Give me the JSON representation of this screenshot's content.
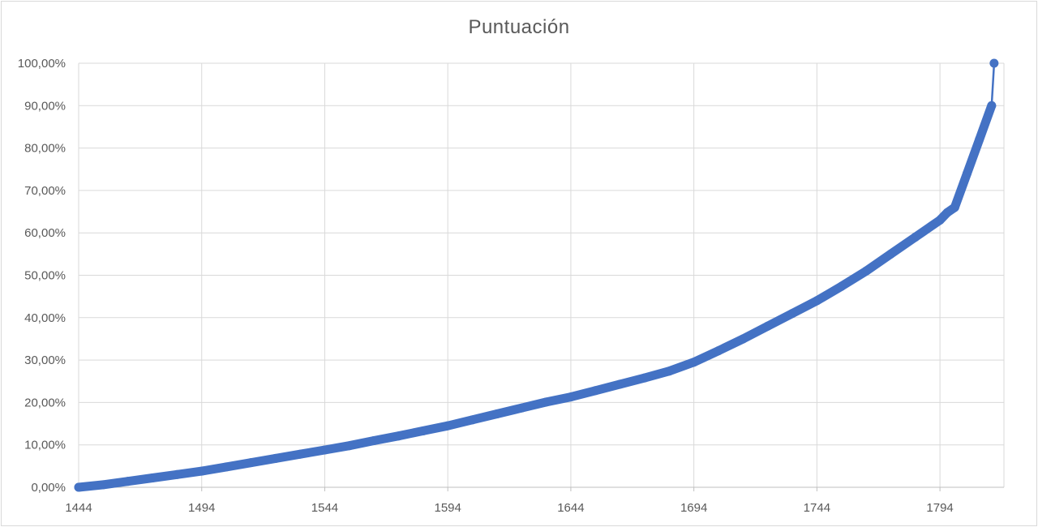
{
  "chart_data": {
    "type": "line",
    "title": "Puntuación",
    "xlabel": "",
    "ylabel": "",
    "x_range": [
      1444,
      1820
    ],
    "x_ticks": [
      "1444",
      "1494",
      "1544",
      "1594",
      "1644",
      "1694",
      "1744",
      "1794"
    ],
    "y_range": [
      0,
      1
    ],
    "y_ticks": [
      "0,00%",
      "10,00%",
      "20,00%",
      "30,00%",
      "40,00%",
      "50,00%",
      "60,00%",
      "70,00%",
      "80,00%",
      "90,00%",
      "100,00%"
    ],
    "grid": true,
    "legend": "none",
    "series": [
      {
        "color": "#4472c4",
        "points": [
          [
            1444,
            0.0
          ],
          [
            1454,
            0.006
          ],
          [
            1464,
            0.014
          ],
          [
            1474,
            0.022
          ],
          [
            1484,
            0.03
          ],
          [
            1494,
            0.038
          ],
          [
            1504,
            0.048
          ],
          [
            1514,
            0.058
          ],
          [
            1524,
            0.068
          ],
          [
            1534,
            0.078
          ],
          [
            1544,
            0.088
          ],
          [
            1554,
            0.098
          ],
          [
            1564,
            0.11
          ],
          [
            1574,
            0.121
          ],
          [
            1584,
            0.133
          ],
          [
            1594,
            0.145
          ],
          [
            1604,
            0.159
          ],
          [
            1614,
            0.173
          ],
          [
            1624,
            0.187
          ],
          [
            1634,
            0.201
          ],
          [
            1644,
            0.213
          ],
          [
            1654,
            0.228
          ],
          [
            1664,
            0.243
          ],
          [
            1674,
            0.258
          ],
          [
            1684,
            0.274
          ],
          [
            1694,
            0.295
          ],
          [
            1704,
            0.322
          ],
          [
            1714,
            0.35
          ],
          [
            1724,
            0.38
          ],
          [
            1734,
            0.41
          ],
          [
            1744,
            0.44
          ],
          [
            1754,
            0.474
          ],
          [
            1764,
            0.51
          ],
          [
            1774,
            0.55
          ],
          [
            1784,
            0.59
          ],
          [
            1794,
            0.63
          ],
          [
            1797,
            0.648
          ],
          [
            1800,
            0.66
          ],
          [
            1805,
            0.74
          ],
          [
            1810,
            0.82
          ],
          [
            1815,
            0.9
          ],
          [
            1816,
            1.0
          ]
        ]
      }
    ]
  }
}
